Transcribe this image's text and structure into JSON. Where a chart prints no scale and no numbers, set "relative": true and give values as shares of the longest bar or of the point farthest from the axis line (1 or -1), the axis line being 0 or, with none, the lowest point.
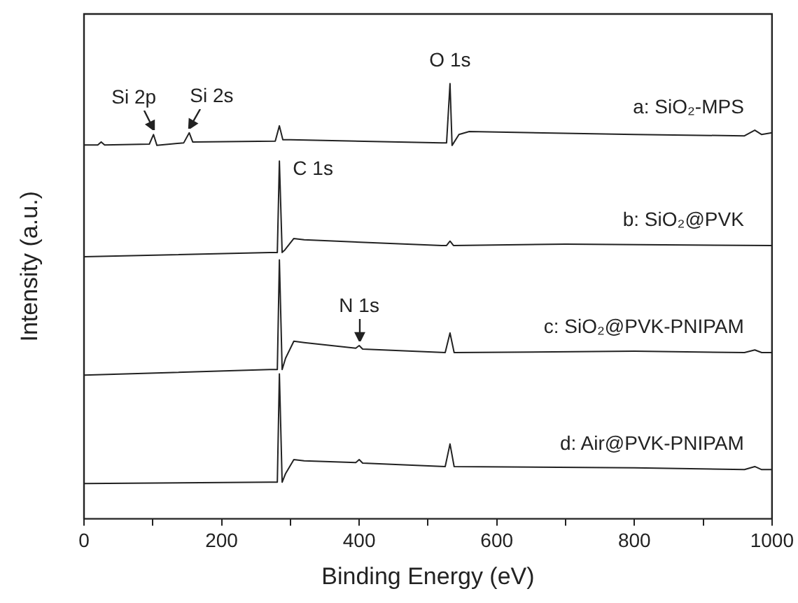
{
  "chart_data": {
    "type": "line",
    "relative": true,
    "xlabel": "Binding Energy (eV)",
    "ylabel": "Intensity (a.u.)",
    "xlim": [
      0,
      1000
    ],
    "xticks": [
      0,
      {
        "value": 100,
        "label": null
      },
      200,
      {
        "value": 300,
        "label": null
      },
      400,
      {
        "value": 500,
        "label": null
      },
      600,
      {
        "value": 700,
        "label": null
      },
      800,
      {
        "value": 900,
        "label": null
      },
      1000
    ],
    "grid": false,
    "legend": false,
    "marker": "none",
    "line_style": "solid",
    "series": [
      {
        "name": "a: SiO₂-MPS",
        "color": "#222222",
        "x": [
          0,
          20,
          25,
          30,
          95,
          101,
          106,
          145,
          153,
          158,
          278,
          284,
          289,
          300,
          520,
          527,
          532,
          535,
          545,
          560,
          800,
          960,
          975,
          985,
          1000
        ],
        "values": [
          0.859,
          0.859,
          0.866,
          0.859,
          0.861,
          0.883,
          0.858,
          0.864,
          0.887,
          0.866,
          0.868,
          0.903,
          0.871,
          0.871,
          0.864,
          0.864,
          1,
          0.858,
          0.883,
          0.89,
          0.883,
          0.88,
          0.893,
          0.883,
          0.887
        ]
      },
      {
        "name": "b: SiO₂@PVK",
        "color": "#222222",
        "x": [
          0,
          270,
          281,
          284,
          288,
          292,
          305,
          320,
          520,
          527,
          532,
          537,
          700,
          1000
        ],
        "values": [
          0.602,
          0.612,
          0.612,
          0.822,
          0.612,
          0.618,
          0.644,
          0.641,
          0.628,
          0.628,
          0.638,
          0.628,
          0.631,
          0.628
        ]
      },
      {
        "name": "c: SiO₂@PVK-PNIPAM",
        "color": "#222222",
        "x": [
          0,
          270,
          281,
          284,
          288,
          293,
          305,
          320,
          395,
          400,
          405,
          525,
          532,
          538,
          800,
          960,
          975,
          985,
          1000
        ],
        "values": [
          0.33,
          0.343,
          0.343,
          0.595,
          0.343,
          0.369,
          0.408,
          0.405,
          0.392,
          0.398,
          0.39,
          0.382,
          0.427,
          0.382,
          0.385,
          0.382,
          0.388,
          0.382,
          0.382
        ]
      },
      {
        "name": "d: Air@PVK-PNIPAM",
        "color": "#222222",
        "x": [
          0,
          270,
          281,
          284,
          288,
          293,
          305,
          320,
          395,
          400,
          405,
          525,
          532,
          538,
          800,
          960,
          975,
          985,
          1000
        ],
        "values": [
          0.081,
          0.084,
          0.084,
          0.333,
          0.084,
          0.104,
          0.136,
          0.133,
          0.129,
          0.136,
          0.128,
          0.12,
          0.172,
          0.12,
          0.117,
          0.113,
          0.12,
          0.113,
          0.113
        ]
      }
    ],
    "annotations": [
      {
        "text": "Si 2p",
        "x": 101,
        "y": 0.883
      },
      {
        "text": "Si 2s",
        "x": 153,
        "y": 0.887
      },
      {
        "text": "O 1s",
        "x": 532,
        "y": 1
      },
      {
        "text": "C 1s",
        "x": 284,
        "y": 0.822
      },
      {
        "text": "N 1s",
        "x": 400,
        "y": 0.398
      }
    ]
  }
}
